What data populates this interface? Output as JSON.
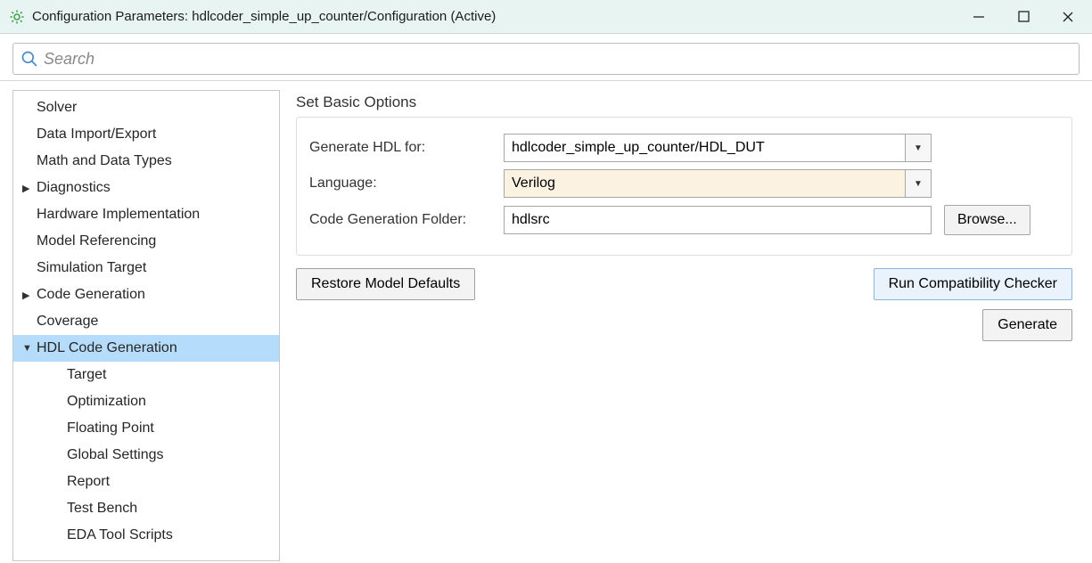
{
  "window": {
    "title": "Configuration Parameters: hdlcoder_simple_up_counter/Configuration (Active)"
  },
  "search": {
    "placeholder": "Search"
  },
  "sidebar": {
    "items": [
      {
        "label": "Solver",
        "level": 0,
        "expandable": false
      },
      {
        "label": "Data Import/Export",
        "level": 0,
        "expandable": false
      },
      {
        "label": "Math and Data Types",
        "level": 0,
        "expandable": false
      },
      {
        "label": "Diagnostics",
        "level": 0,
        "expandable": true,
        "expanded": false
      },
      {
        "label": "Hardware Implementation",
        "level": 0,
        "expandable": false
      },
      {
        "label": "Model Referencing",
        "level": 0,
        "expandable": false
      },
      {
        "label": "Simulation Target",
        "level": 0,
        "expandable": false
      },
      {
        "label": "Code Generation",
        "level": 0,
        "expandable": true,
        "expanded": false
      },
      {
        "label": "Coverage",
        "level": 0,
        "expandable": false
      },
      {
        "label": "HDL Code Generation",
        "level": 0,
        "expandable": true,
        "expanded": true,
        "selected": true
      },
      {
        "label": "Target",
        "level": 1,
        "expandable": false
      },
      {
        "label": "Optimization",
        "level": 1,
        "expandable": false
      },
      {
        "label": "Floating Point",
        "level": 1,
        "expandable": false
      },
      {
        "label": "Global Settings",
        "level": 1,
        "expandable": false
      },
      {
        "label": "Report",
        "level": 1,
        "expandable": false
      },
      {
        "label": "Test Bench",
        "level": 1,
        "expandable": false
      },
      {
        "label": "EDA Tool Scripts",
        "level": 1,
        "expandable": false
      }
    ]
  },
  "main": {
    "section_title": "Set Basic Options",
    "generate_hdl_label": "Generate HDL for:",
    "generate_hdl_value": "hdlcoder_simple_up_counter/HDL_DUT",
    "language_label": "Language:",
    "language_value": "Verilog",
    "folder_label": "Code Generation Folder:",
    "folder_value": "hdlsrc",
    "browse_label": "Browse...",
    "restore_label": "Restore Model Defaults",
    "run_checker_label": "Run Compatibility Checker",
    "generate_label": "Generate"
  },
  "colors": {
    "titlebar_bg": "#e8f4f2",
    "selected_bg": "#b6dcfb",
    "highlight_input_bg": "#fbf2e2",
    "primary_btn_bg": "#eaf2fb"
  }
}
